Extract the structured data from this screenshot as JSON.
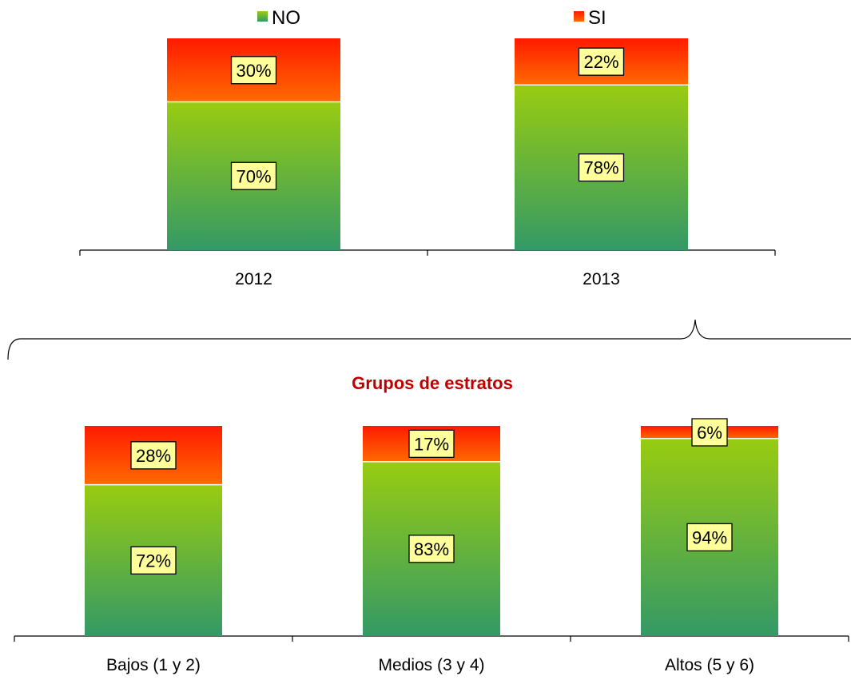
{
  "colors": {
    "no_top": "#99cc11",
    "no_bottom": "#339966",
    "si_top": "#ff1a00",
    "si_bottom": "#ff6a00",
    "label_bg": "#ffff99",
    "group_title": "#c00000"
  },
  "legend": [
    {
      "name": "NO",
      "color_ref": "no"
    },
    {
      "name": "SI",
      "color_ref": "si"
    }
  ],
  "group_title": "Grupos de estratos",
  "chart_data": [
    {
      "type": "bar",
      "stacked": true,
      "categories": [
        "2012",
        "2013"
      ],
      "series": [
        {
          "name": "NO",
          "values": [
            70,
            78
          ],
          "labels": [
            "70%",
            "78%"
          ]
        },
        {
          "name": "SI",
          "values": [
            30,
            22
          ],
          "labels": [
            "30%",
            "22%"
          ]
        }
      ],
      "ylim": [
        0,
        100
      ],
      "grid": false,
      "legend": "top"
    },
    {
      "type": "bar",
      "stacked": true,
      "title": "Grupos de estratos",
      "categories": [
        "Bajos (1 y 2)",
        "Medios (3 y 4)",
        "Altos (5 y 6)"
      ],
      "series": [
        {
          "name": "NO",
          "values": [
            72,
            83,
            94
          ],
          "labels": [
            "72%",
            "83%",
            "94%"
          ]
        },
        {
          "name": "SI",
          "values": [
            28,
            17,
            6
          ],
          "labels": [
            "28%",
            "17%",
            "6%"
          ]
        }
      ],
      "ylim": [
        0,
        100
      ],
      "grid": false
    }
  ]
}
